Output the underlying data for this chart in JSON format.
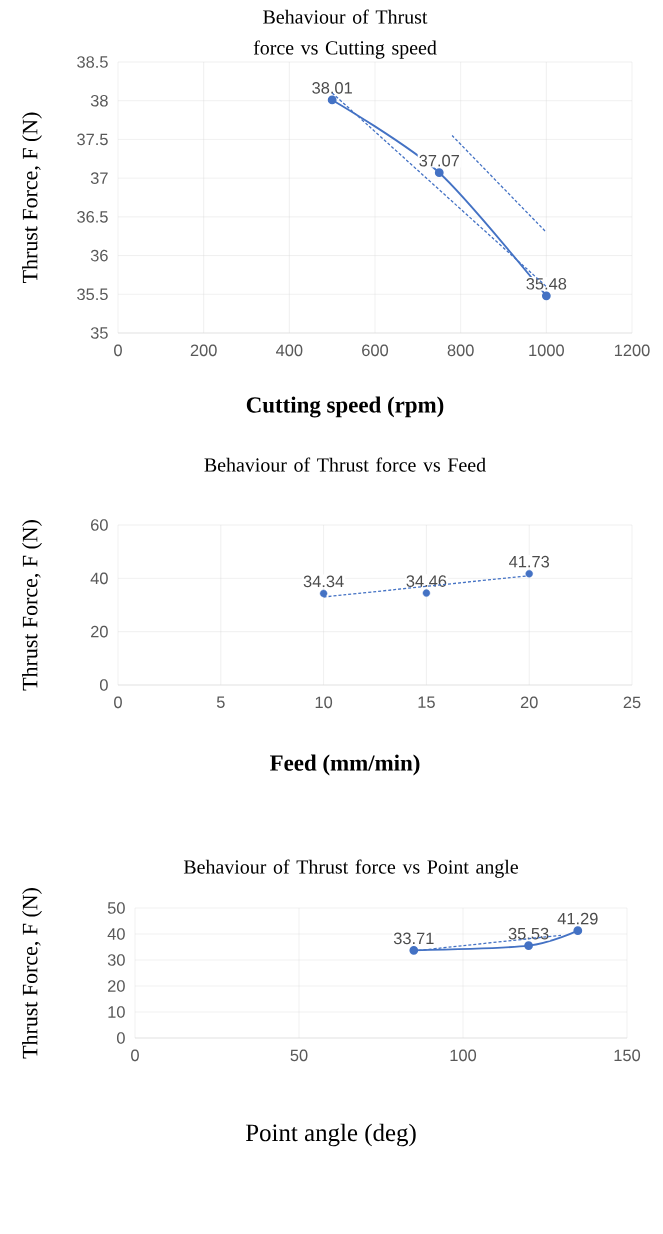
{
  "chart_data": [
    {
      "type": "scatter",
      "title": "Behaviour of  Thrust force vs Cutting speed",
      "xlabel": "Cutting speed (rpm)",
      "ylabel": "Thrust Force, F (N)",
      "xlim": [
        0,
        1200
      ],
      "ylim": [
        35,
        38.5
      ],
      "xticks": [
        0,
        200,
        400,
        600,
        800,
        1000,
        1200
      ],
      "yticks": [
        35,
        35.5,
        36,
        36.5,
        37,
        37.5,
        38,
        38.5
      ],
      "grid": true,
      "series": [
        {
          "type": "line",
          "color": "#4472c4",
          "marker": "circle",
          "line_style": "solid",
          "x": [
            500,
            750,
            1000
          ],
          "values": [
            38.01,
            37.07,
            35.48
          ],
          "value_labels": [
            "38.01",
            "37.07",
            "35.48"
          ]
        },
        {
          "type": "line",
          "color": "#4472c4",
          "marker": "none",
          "line_style": "dotted",
          "x": [
            500,
            1000
          ],
          "values": [
            38.1,
            35.6
          ]
        },
        {
          "type": "line",
          "color": "#4472c4",
          "marker": "none",
          "line_style": "dotted",
          "x": [
            780,
            1000
          ],
          "values": [
            37.55,
            36.3
          ]
        }
      ]
    },
    {
      "type": "scatter",
      "title": "Behaviour of  Thrust force vs Feed",
      "xlabel": "Feed (mm/min)",
      "ylabel": "Thrust Force, F (N)",
      "xlim": [
        0,
        25
      ],
      "ylim": [
        0,
        60
      ],
      "xticks": [
        0,
        5,
        10,
        15,
        20,
        25
      ],
      "yticks": [
        0,
        20,
        40,
        60
      ],
      "grid": true,
      "series": [
        {
          "type": "scatter",
          "color": "#4472c4",
          "marker": "circle",
          "x": [
            10,
            15,
            20
          ],
          "values": [
            34.34,
            34.46,
            41.73
          ],
          "value_labels": [
            "34.34",
            "34.46",
            "41.73"
          ]
        },
        {
          "type": "line",
          "color": "#4472c4",
          "marker": "none",
          "line_style": "dotted",
          "x": [
            10,
            20
          ],
          "values": [
            33,
            41
          ]
        }
      ]
    },
    {
      "type": "scatter",
      "title": "Behaviour of  Thrust force vs Point angle",
      "xlabel": "Point angle (deg)",
      "ylabel": "Thrust Force, F (N)",
      "xlim": [
        0,
        150
      ],
      "ylim": [
        0,
        50
      ],
      "xticks": [
        0,
        50,
        100,
        150
      ],
      "yticks": [
        0,
        10,
        20,
        30,
        40,
        50
      ],
      "grid": true,
      "series": [
        {
          "type": "line",
          "color": "#4472c4",
          "marker": "circle",
          "line_style": "solid",
          "x": [
            85,
            120,
            135
          ],
          "values": [
            33.71,
            35.53,
            41.29
          ],
          "value_labels": [
            "33.71",
            "35.53",
            "41.29"
          ]
        },
        {
          "type": "line",
          "color": "#4472c4",
          "marker": "none",
          "line_style": "dotted",
          "x": [
            85,
            130
          ],
          "values": [
            33.5,
            39.5
          ]
        }
      ]
    }
  ]
}
